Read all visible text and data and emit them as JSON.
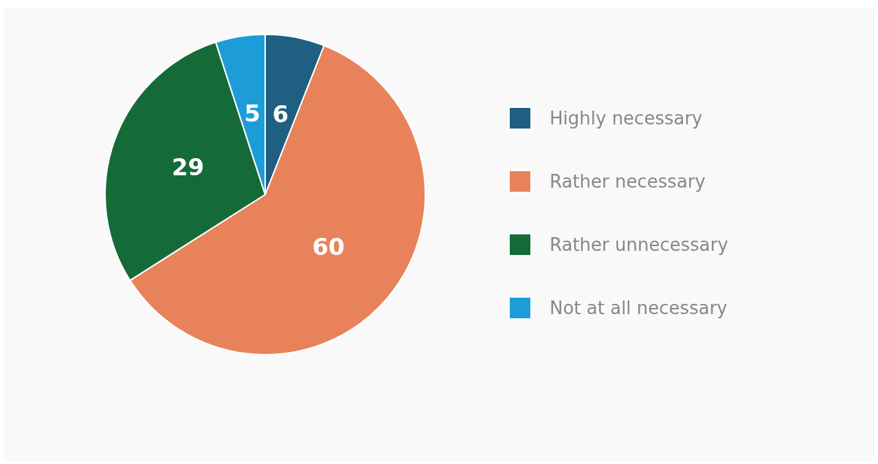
{
  "chart_data": {
    "type": "pie",
    "categories": [
      "Highly necessary",
      "Rather necessary",
      "Rather unnecessary",
      "Not at all necessary"
    ],
    "values": [
      6,
      60,
      29,
      5
    ],
    "colors": [
      "#1f5f82",
      "#e8825a",
      "#156b38",
      "#1d9dd8"
    ],
    "data_labels": true,
    "legend": "right"
  }
}
